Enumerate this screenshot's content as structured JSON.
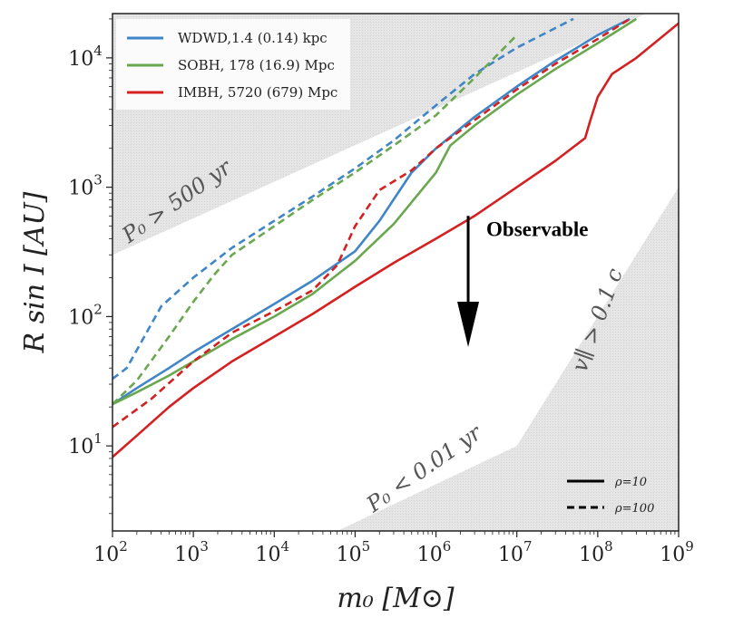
{
  "chart_data": {
    "type": "line",
    "xscale": "log",
    "yscale": "log",
    "xlim": [
      100,
      1000000000
    ],
    "ylim": [
      2.2,
      22000
    ],
    "xlabel": "m₀ [M⊙]",
    "ylabel": "R sin I [AU]",
    "xticks": [
      {
        "base": "10",
        "exp": "2",
        "value": 100
      },
      {
        "base": "10",
        "exp": "3",
        "value": 1000
      },
      {
        "base": "10",
        "exp": "4",
        "value": 10000
      },
      {
        "base": "10",
        "exp": "5",
        "value": 100000
      },
      {
        "base": "10",
        "exp": "6",
        "value": 1000000
      },
      {
        "base": "10",
        "exp": "7",
        "value": 10000000
      },
      {
        "base": "10",
        "exp": "8",
        "value": 100000000
      },
      {
        "base": "10",
        "exp": "9",
        "value": 1000000000
      }
    ],
    "yticks": [
      {
        "base": "10",
        "exp": "1",
        "value": 10
      },
      {
        "base": "10",
        "exp": "2",
        "value": 100
      },
      {
        "base": "10",
        "exp": "3",
        "value": 1000
      },
      {
        "base": "10",
        "exp": "4",
        "value": 10000
      }
    ],
    "series": [
      {
        "name": "WDWD,1.4 (0.14) kpc",
        "color": "#3f86c8",
        "style": "solid",
        "x": [
          100,
          200,
          500,
          1000,
          3000,
          10000,
          30000,
          100000,
          200000,
          500000,
          1000000,
          3000000,
          10000000,
          30000000,
          100000000,
          250000000
        ],
        "y": [
          21,
          28,
          40,
          53,
          80,
          125,
          190,
          320,
          550,
          1300,
          2000,
          3500,
          6000,
          9500,
          15000,
          20000
        ]
      },
      {
        "name": "WDWD,1.4 (0.14) kpc",
        "color": "#3f86c8",
        "style": "dashed",
        "x": [
          100,
          150,
          200,
          400,
          1000,
          3000,
          10000,
          30000,
          100000,
          300000,
          1000000,
          3000000,
          10000000,
          50000000
        ],
        "y": [
          33,
          40,
          55,
          120,
          200,
          340,
          550,
          850,
          1400,
          2300,
          4300,
          7500,
          12000,
          20000
        ]
      },
      {
        "name": "SOBH, 178 (16.9) Mpc",
        "color": "#6aa84f",
        "style": "solid",
        "x": [
          100,
          200,
          500,
          1000,
          3000,
          10000,
          30000,
          100000,
          300000,
          1000000,
          1500000,
          3000000,
          10000000,
          30000000,
          100000000,
          300000000
        ],
        "y": [
          21,
          26,
          35,
          45,
          67,
          100,
          150,
          270,
          520,
          1300,
          2100,
          3000,
          5200,
          8200,
          13000,
          20000
        ]
      },
      {
        "name": "SOBH, 178 (16.9) Mpc",
        "color": "#6aa84f",
        "style": "dashed",
        "x": [
          100,
          200,
          500,
          1000,
          1800,
          3000,
          10000,
          30000,
          100000,
          300000,
          1000000,
          3000000,
          10000000
        ],
        "y": [
          21,
          32,
          70,
          130,
          210,
          300,
          500,
          800,
          1300,
          2100,
          3600,
          7000,
          15000
        ]
      },
      {
        "name": "IMBH, 5720 (679) Mpc",
        "color": "#d42020",
        "style": "solid",
        "x": [
          100,
          200,
          500,
          1000,
          3000,
          10000,
          30000,
          100000,
          300000,
          1000000,
          3000000,
          10000000,
          30000000,
          70000000,
          80000000,
          100000000,
          150000000,
          300000000,
          1000000000
        ],
        "y": [
          8.2,
          12,
          20,
          28,
          45,
          70,
          105,
          170,
          260,
          400,
          600,
          1000,
          1600,
          2400,
          3200,
          5000,
          7500,
          10000,
          18500
        ]
      },
      {
        "name": "IMBH, 5720 (679) Mpc",
        "color": "#d42020",
        "style": "dashed",
        "x": [
          100,
          300,
          1000,
          3000,
          10000,
          30000,
          60000,
          100000,
          200000,
          500000,
          1000000,
          3000000,
          10000000,
          30000000,
          100000000,
          250000000
        ],
        "y": [
          14,
          23,
          45,
          75,
          110,
          160,
          250,
          500,
          950,
          1350,
          2000,
          3300,
          5700,
          9000,
          14000,
          20000
        ]
      }
    ],
    "regions": [
      {
        "label": "P₀ > 500 yr",
        "polygon": [
          [
            100,
            300
          ],
          [
            100,
            22000
          ],
          [
            400000000,
            22000
          ]
        ]
      },
      {
        "label": "P₀ < 0.01 yr",
        "polygon": [
          [
            60000,
            2.2
          ],
          [
            10000000,
            10
          ],
          [
            1000000000,
            1000
          ],
          [
            1000000000,
            2.2
          ]
        ]
      },
      {
        "label": "v∥ > 0.1 c",
        "polygon": [
          [
            10000000,
            10
          ],
          [
            1000000000,
            1000
          ],
          [
            1000000000,
            2.2
          ],
          [
            10000000,
            2.2
          ]
        ]
      }
    ],
    "annotation": {
      "text": "Observable",
      "arrow_from": [
        2500000,
        600
      ],
      "arrow_to": [
        2500000,
        60
      ]
    },
    "style_legend": [
      {
        "label": "ρ=10",
        "style": "solid"
      },
      {
        "label": "ρ=100",
        "style": "dashed"
      }
    ],
    "legend_location": "top-left",
    "grid": false
  }
}
